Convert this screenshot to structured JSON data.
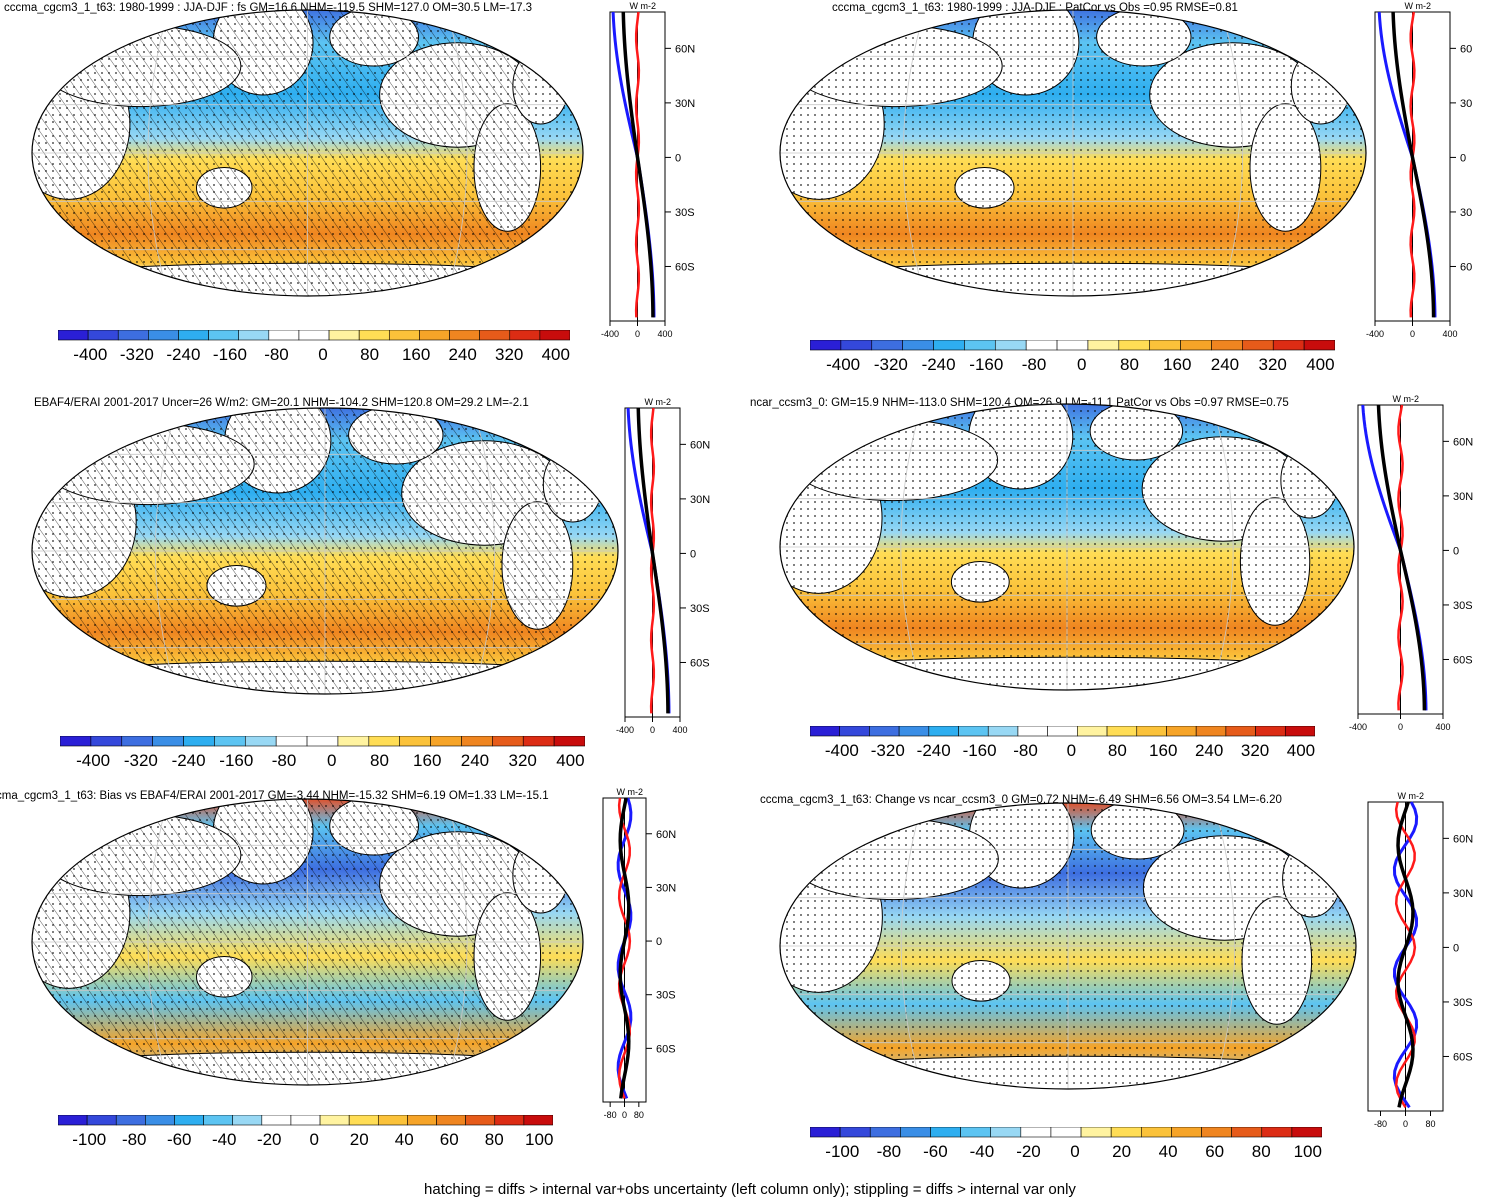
{
  "footnote": "hatching = diffs > internal var+obs uncertainty (left column only); stippling = diffs > internal var only",
  "chart_data": [
    {
      "type": "heatmap",
      "title": "cccma_cgcm3_1_t63: 1980-1999 : JJA-DJF : fs GM=16.6 NHM=-119.5 SHM=127.0 OM=30.5 LM=-17.3",
      "colorbar_labels": [
        "-400",
        "-320",
        "-240",
        "-160",
        "-80",
        "0",
        "80",
        "160",
        "240",
        "320",
        "400"
      ],
      "zonal": {
        "unit_label": "W m-2",
        "xticks": [
          "-400",
          "0",
          "400"
        ],
        "yticks": [
          "60N",
          "30N",
          "0",
          "30S",
          "60S"
        ],
        "xlim": [
          -400,
          400
        ]
      },
      "hatching": true,
      "stippling": true
    },
    {
      "type": "heatmap",
      "title": "cccma_cgcm3_1_t63: 1980-1999 : JJA-DJF : PatCor vs Obs =0.95 RMSE=0.81",
      "colorbar_labels": [
        "-400",
        "-320",
        "-240",
        "-160",
        "-80",
        "0",
        "80",
        "160",
        "240",
        "320",
        "400"
      ],
      "zonal": {
        "unit_label": "W m-2",
        "xticks": [
          "-400",
          "0",
          "400"
        ],
        "yticks": [
          "60",
          "30",
          "0",
          "30",
          "60"
        ],
        "xlim": [
          -400,
          400
        ]
      },
      "hatching": false,
      "stippling": true
    },
    {
      "type": "heatmap",
      "title": "EBAF4/ERAI 2001-2017 Uncer=26 W/m2: GM=20.1 NHM=-104.2 SHM=120.8 OM=29.2 LM=-2.1",
      "colorbar_labels": [
        "-400",
        "-320",
        "-240",
        "-160",
        "-80",
        "0",
        "80",
        "160",
        "240",
        "320",
        "400"
      ],
      "zonal": {
        "unit_label": "W m-2",
        "xticks": [
          "-400",
          "0",
          "400"
        ],
        "yticks": [
          "60N",
          "30N",
          "0",
          "30S",
          "60S"
        ],
        "xlim": [
          -400,
          400
        ]
      },
      "hatching": true,
      "stippling": true
    },
    {
      "type": "heatmap",
      "title": "ncar_ccsm3_0: GM=15.9 NHM=-113.0 SHM=120.4 OM=26.9 LM=-11.1 PatCor vs Obs =0.97 RMSE=0.75",
      "colorbar_labels": [
        "-400",
        "-320",
        "-240",
        "-160",
        "-80",
        "0",
        "80",
        "160",
        "240",
        "320",
        "400"
      ],
      "zonal": {
        "unit_label": "W m-2",
        "xticks": [
          "-400",
          "0",
          "400"
        ],
        "yticks": [
          "60N",
          "30N",
          "0",
          "30S",
          "60S"
        ],
        "xlim": [
          -400,
          400
        ]
      },
      "hatching": false,
      "stippling": true
    },
    {
      "type": "heatmap",
      "title": "cma_cgcm3_1_t63: Bias vs EBAF4/ERAI 2001-2017 GM=-3.44 NHM=-15.32 SHM=6.19 OM=1.33 LM=-15.1",
      "colorbar_labels": [
        "-100",
        "-80",
        "-60",
        "-40",
        "-20",
        "0",
        "20",
        "40",
        "60",
        "80",
        "100"
      ],
      "zonal": {
        "unit_label": "W m-2",
        "xticks": [
          "-80",
          "0",
          "80"
        ],
        "yticks": [
          "60N",
          "30N",
          "0",
          "30S",
          "60S"
        ],
        "xlim": [
          -120,
          120
        ]
      },
      "hatching": true,
      "stippling": true
    },
    {
      "type": "heatmap",
      "title": "cccma_cgcm3_1_t63: Change vs ncar_ccsm3_0 GM=0.72 NHM=-6.49 SHM=6.56 OM=3.54 LM=-6.20",
      "colorbar_labels": [
        "-100",
        "-80",
        "-60",
        "-40",
        "-20",
        "0",
        "20",
        "40",
        "60",
        "80",
        "100"
      ],
      "zonal": {
        "unit_label": "W m-2",
        "xticks": [
          "-80",
          "0",
          "80"
        ],
        "yticks": [
          "60N",
          "30N",
          "0",
          "30S",
          "60S"
        ],
        "xlim": [
          -120,
          120
        ]
      },
      "hatching": false,
      "stippling": true
    }
  ]
}
